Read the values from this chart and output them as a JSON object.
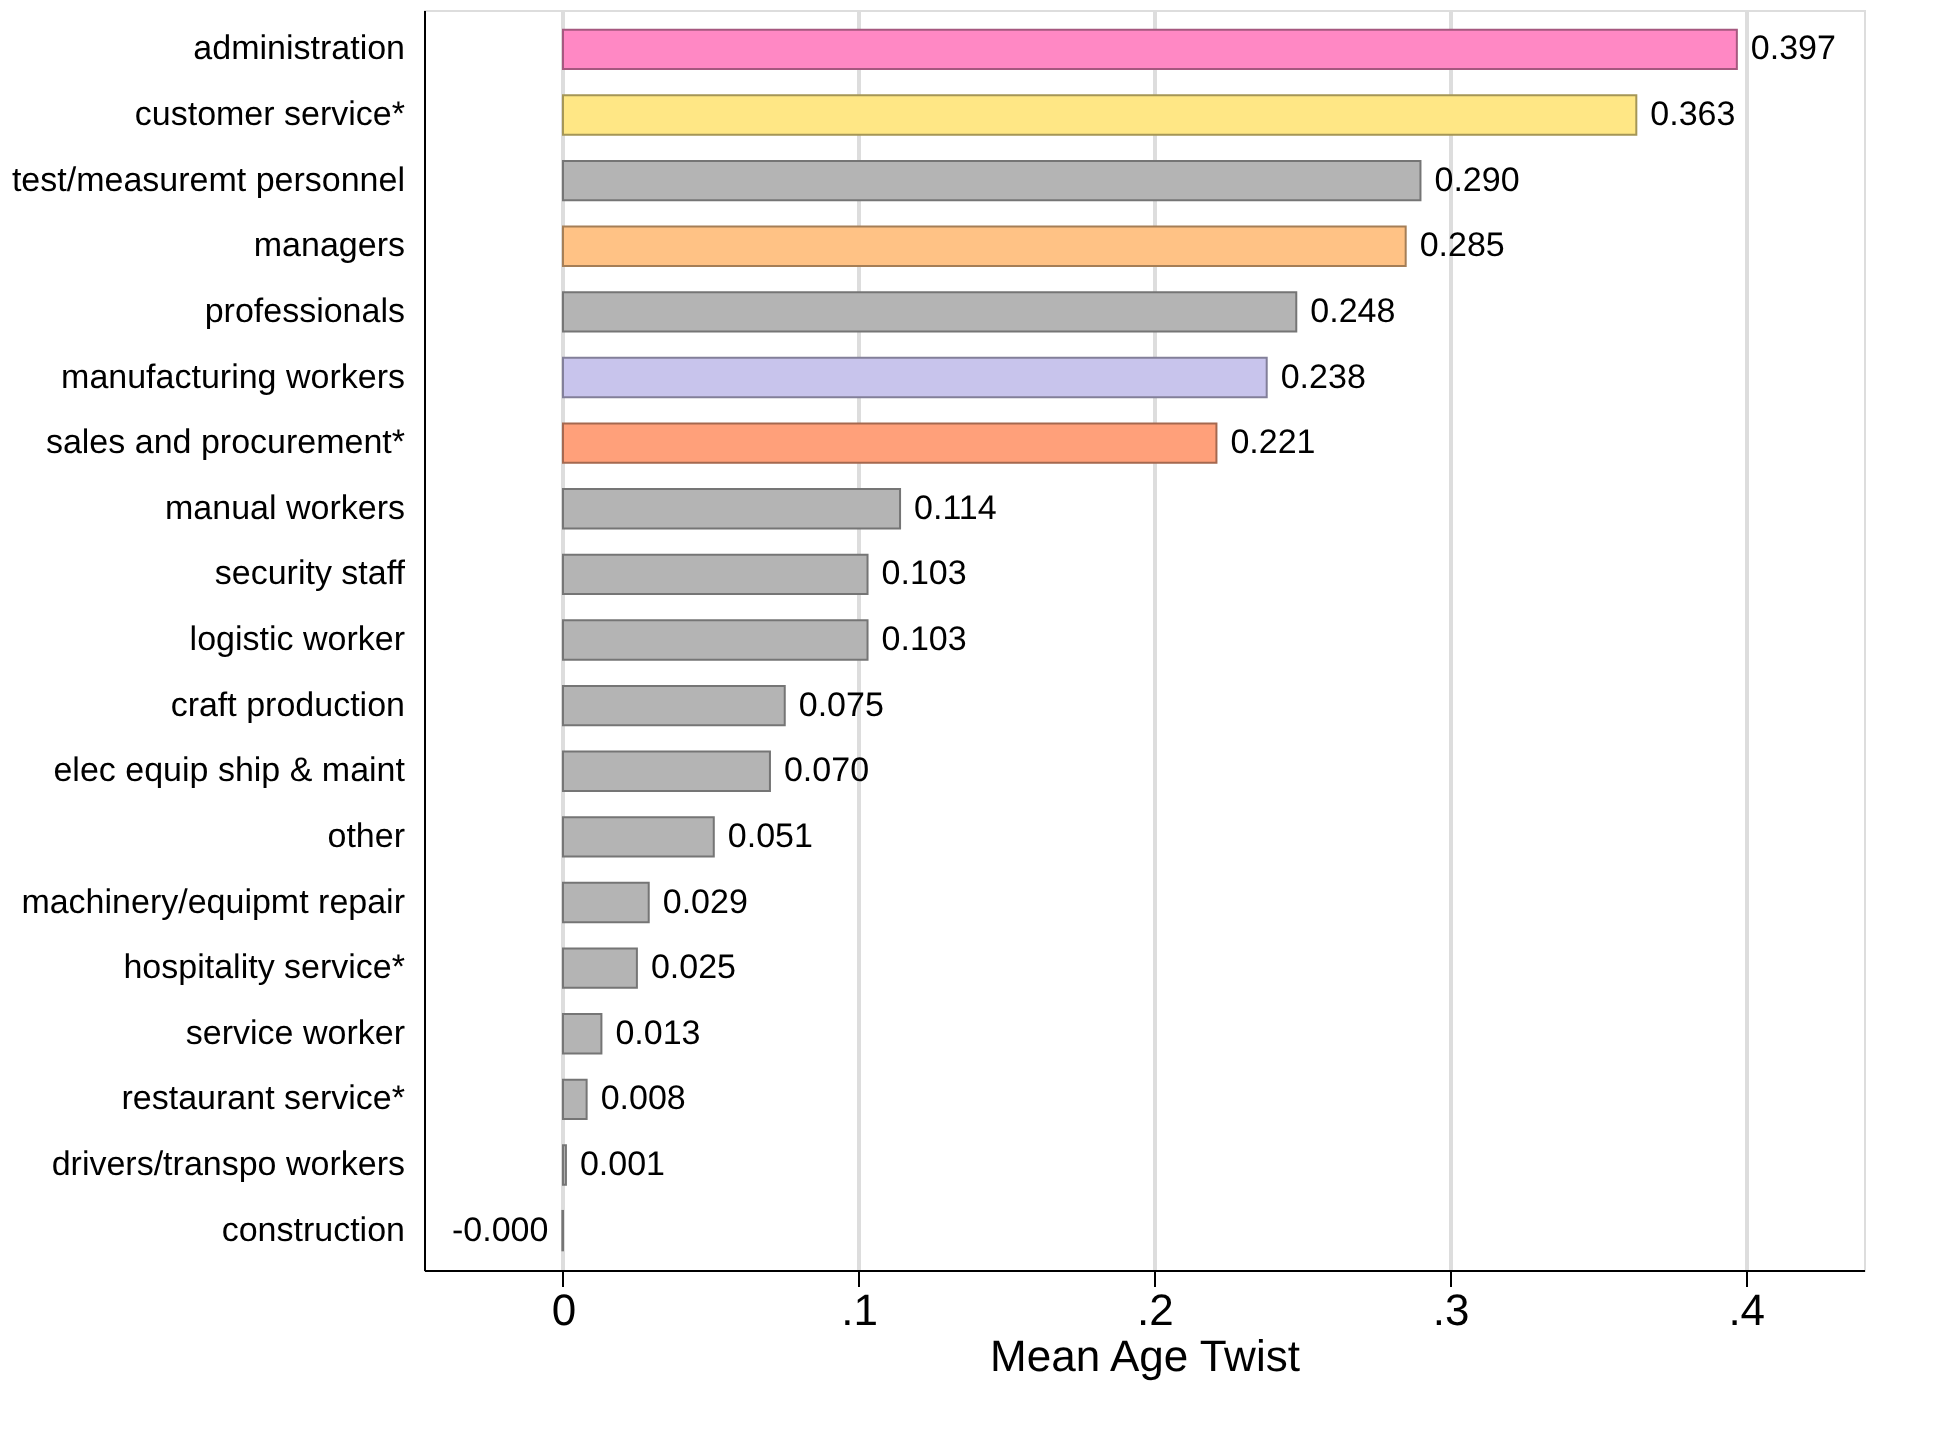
{
  "chart_data": {
    "type": "bar",
    "orientation": "horizontal",
    "xlabel": "Mean Age Twist",
    "categories": [
      "administration",
      "customer service*",
      "test/measuremt personnel",
      "managers",
      "professionals",
      "manufacturing workers",
      "sales and procurement*",
      "manual workers",
      "security staff",
      "logistic worker",
      "craft production",
      "elec equip ship & maint",
      "other",
      "machinery/equipmt repair",
      "hospitality service*",
      "service worker",
      "restaurant service*",
      "drivers/transpo workers",
      "construction"
    ],
    "values": [
      0.397,
      0.363,
      0.29,
      0.285,
      0.248,
      0.238,
      0.221,
      0.114,
      0.103,
      0.103,
      0.075,
      0.07,
      0.051,
      0.029,
      0.025,
      0.013,
      0.008,
      0.001,
      -0.0002
    ],
    "value_labels": [
      "0.397",
      "0.363",
      "0.290",
      "0.285",
      "0.248",
      "0.238",
      "0.221",
      "0.114",
      "0.103",
      "0.103",
      "0.075",
      "0.070",
      "0.051",
      "0.029",
      "0.025",
      "0.013",
      "0.008",
      "0.001",
      "-0.000"
    ],
    "colors": [
      "#ff88c4",
      "#ffe785",
      "#b4b4b4",
      "#ffc285",
      "#b4b4b4",
      "#c8c4ec",
      "#ffa07a",
      "#b4b4b4",
      "#b4b4b4",
      "#b4b4b4",
      "#b4b4b4",
      "#b4b4b4",
      "#b4b4b4",
      "#b4b4b4",
      "#b4b4b4",
      "#b4b4b4",
      "#b4b4b4",
      "#b4b4b4",
      "#b4b4b4"
    ],
    "xlim": [
      -0.047,
      0.44
    ],
    "xticks": [
      {
        "value": 0,
        "label": "0"
      },
      {
        "value": 0.1,
        "label": ".1"
      },
      {
        "value": 0.2,
        "label": ".2"
      },
      {
        "value": 0.3,
        "label": ".3"
      },
      {
        "value": 0.4,
        "label": ".4"
      }
    ],
    "grid": "x",
    "legend": false
  }
}
